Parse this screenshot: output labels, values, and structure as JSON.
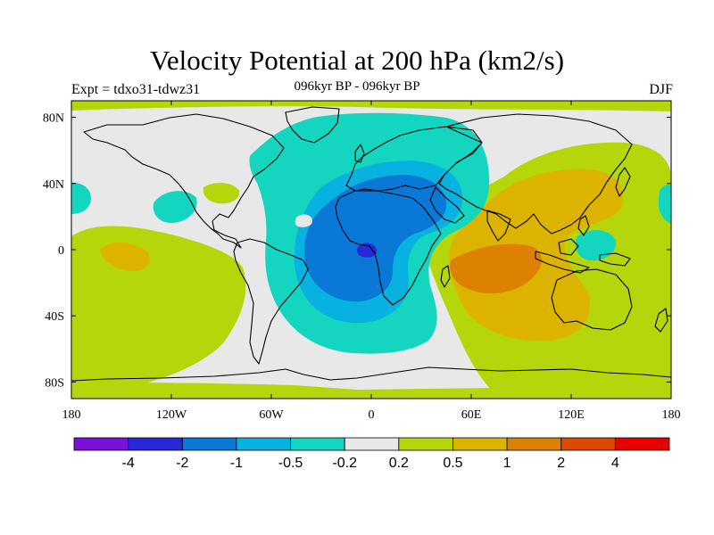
{
  "header": {
    "title": "Velocity Potential at 200 hPa (km2/s)",
    "subtitle": "096kyr BP - 096kyr BP",
    "left_label": "Expt = tdxo31-tdwz31",
    "right_label": "DJF"
  },
  "map": {
    "projection": "cylindrical-equidistant",
    "background_color": "#e8e8e8",
    "coastline_color": "#000000",
    "lat_ticks": [
      {
        "value": 80,
        "label": "80N"
      },
      {
        "value": 40,
        "label": "40N"
      },
      {
        "value": 0,
        "label": "0"
      },
      {
        "value": -40,
        "label": "40S"
      },
      {
        "value": -80,
        "label": "80S"
      }
    ],
    "lon_ticks": [
      {
        "value": -180,
        "label": "180"
      },
      {
        "value": -120,
        "label": "120W"
      },
      {
        "value": -60,
        "label": "60W"
      },
      {
        "value": 0,
        "label": "0"
      },
      {
        "value": 60,
        "label": "60E"
      },
      {
        "value": 120,
        "label": "120E"
      },
      {
        "value": 180,
        "label": "180"
      }
    ]
  },
  "colorbar": {
    "colors": [
      "#7a10dc",
      "#2828d8",
      "#0a78d6",
      "#08b2e0",
      "#14d6c0",
      "#e8e8e8",
      "#b4d60a",
      "#dcb400",
      "#dc8200",
      "#dc4a00",
      "#e60000"
    ],
    "labels": [
      "-4",
      "-2",
      "-1",
      "-0.5",
      "-0.2",
      "0.2",
      "0.5",
      "1",
      "2",
      "4"
    ]
  }
}
